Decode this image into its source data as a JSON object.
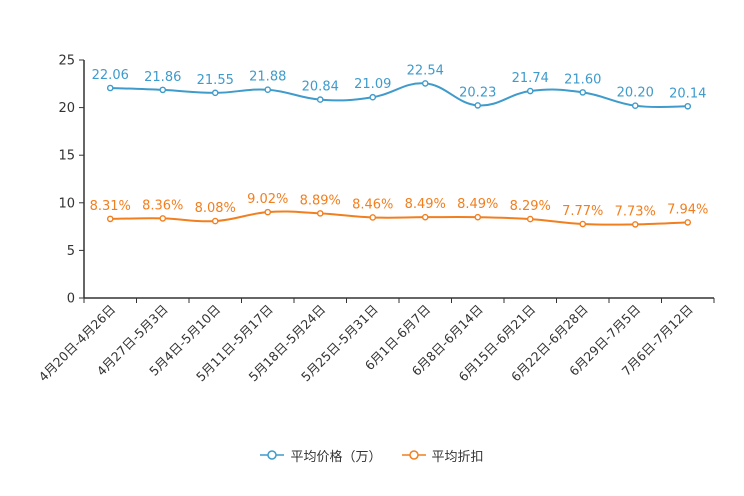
{
  "chart_data": {
    "type": "line",
    "categories": [
      "4月20日-4月26日",
      "4月27日-5月3日",
      "5月4日-5月10日",
      "5月11日-5月17日",
      "5月18日-5月24日",
      "5月25日-5月31日",
      "6月1日-6月7日",
      "6月8日-6月14日",
      "6月15日-6月21日",
      "6月22日-6月28日",
      "6月29日-7月5日",
      "7月6日-7月12日"
    ],
    "series": [
      {
        "name": "平均价格（万）",
        "color": "#3e9bcb",
        "values": [
          22.06,
          21.86,
          21.55,
          21.88,
          20.84,
          21.09,
          22.54,
          20.23,
          21.74,
          21.6,
          20.2,
          20.14
        ],
        "labels": [
          "22.06",
          "21.86",
          "21.55",
          "21.88",
          "20.84",
          "21.09",
          "22.54",
          "20.23",
          "21.74",
          "21.60",
          "20.20",
          "20.14"
        ]
      },
      {
        "name": "平均折扣",
        "color": "#f27f1f",
        "values": [
          8.31,
          8.36,
          8.08,
          9.02,
          8.89,
          8.46,
          8.49,
          8.49,
          8.29,
          7.77,
          7.73,
          7.94
        ],
        "labels": [
          "8.31%",
          "8.36%",
          "8.08%",
          "9.02%",
          "8.89%",
          "8.46%",
          "8.49%",
          "8.49%",
          "8.29%",
          "7.77%",
          "7.73%",
          "7.94%"
        ]
      }
    ],
    "yticks": [
      0,
      5,
      10,
      15,
      20,
      25
    ],
    "ylim": [
      0,
      25
    ],
    "title": "",
    "xlabel": "",
    "ylabel": "",
    "legend": "bottom-center"
  }
}
